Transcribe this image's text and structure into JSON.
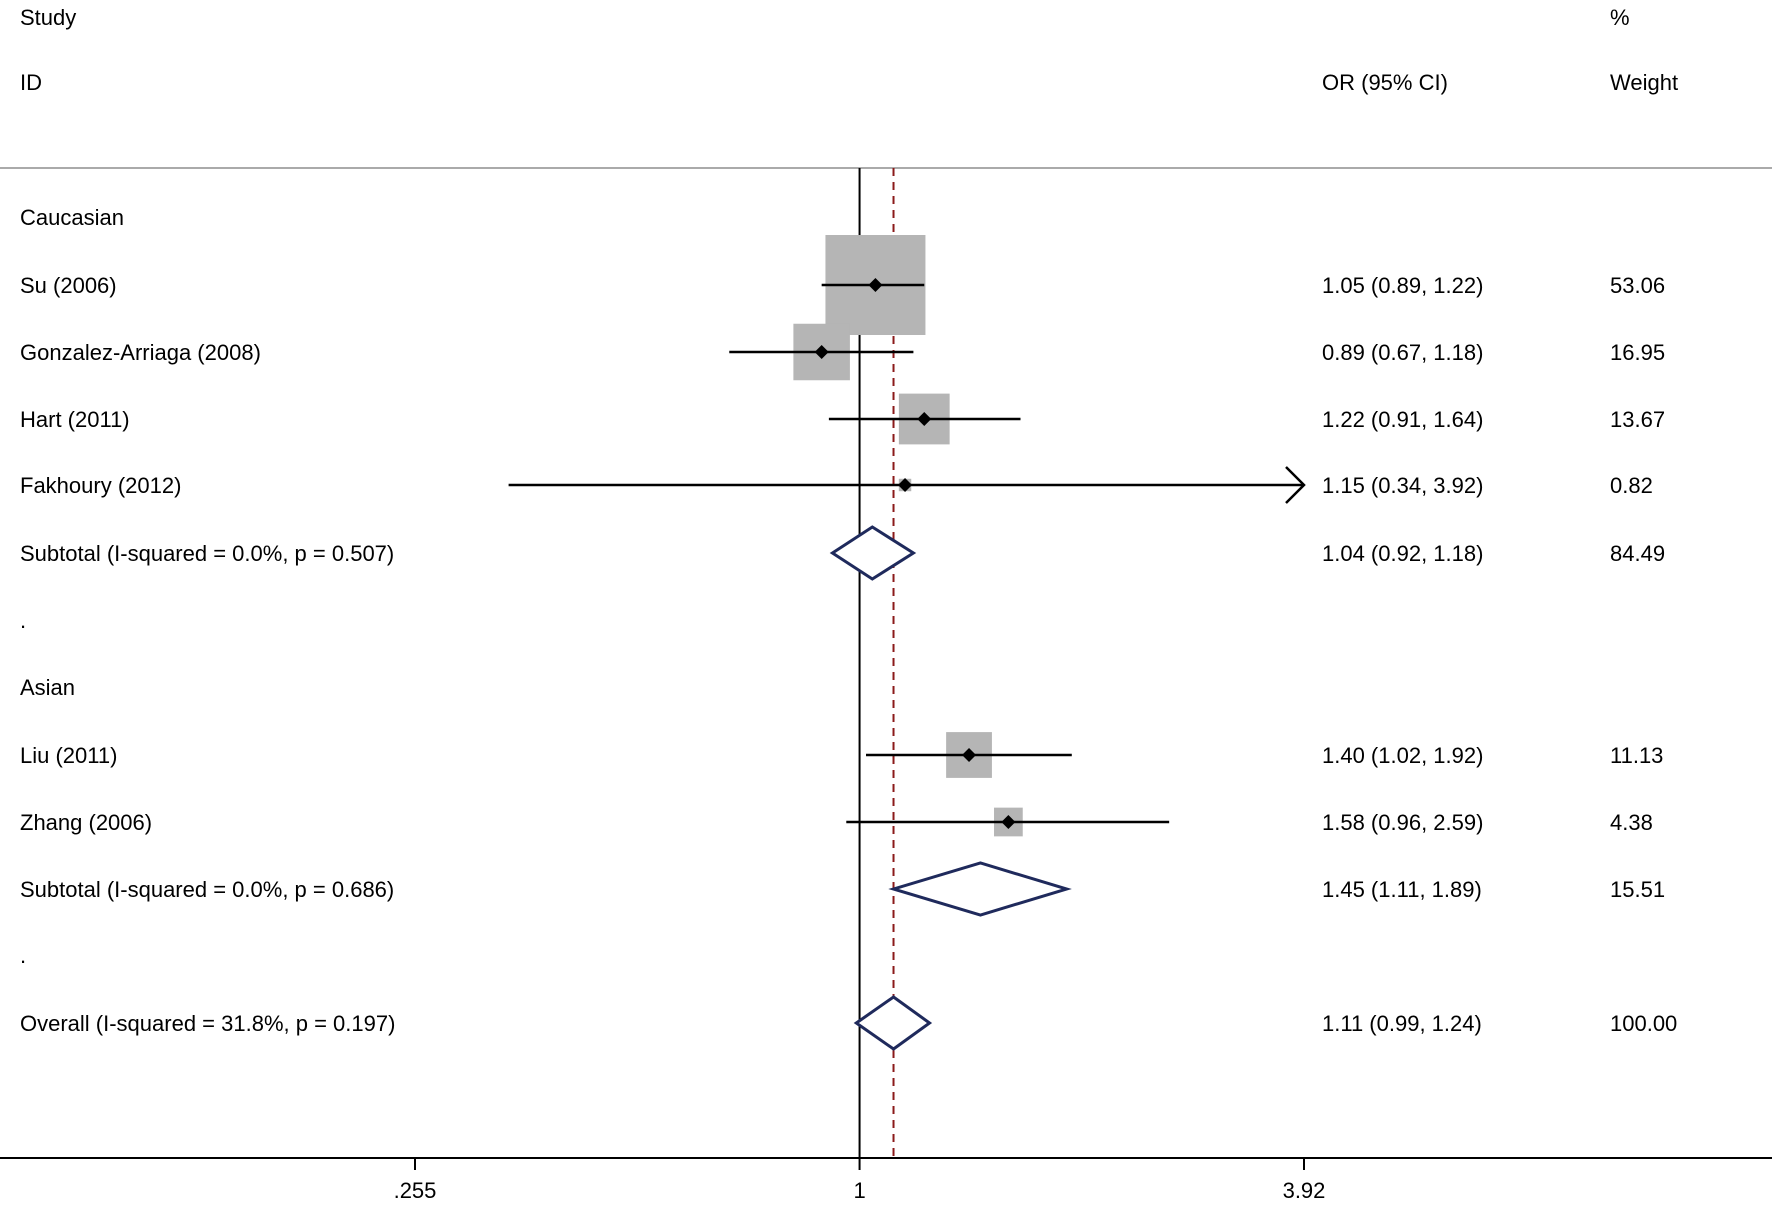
{
  "chart_data": {
    "type": "forest",
    "x_scale": "log",
    "xlim": [
      0.255,
      3.92
    ],
    "x_ticks": [
      ".255",
      "1",
      "3.92"
    ],
    "null_line": 1,
    "pooled_reference": 1.11,
    "header": {
      "study_line1": "Study",
      "study_line2": "ID",
      "or_header": "OR (95% CI)",
      "weight_line1": "%",
      "weight_line2": "Weight"
    },
    "rows": [
      {
        "kind": "group",
        "label": "Caucasian"
      },
      {
        "kind": "study",
        "label": "Su (2006)",
        "or": 1.05,
        "lo": 0.89,
        "hi": 1.22,
        "weight": 53.06,
        "or_text": "1.05 (0.89, 1.22)",
        "weight_text": "53.06"
      },
      {
        "kind": "study",
        "label": "Gonzalez-Arriaga  (2008)",
        "or": 0.89,
        "lo": 0.67,
        "hi": 1.18,
        "weight": 16.95,
        "or_text": "0.89 (0.67, 1.18)",
        "weight_text": "16.95"
      },
      {
        "kind": "study",
        "label": "Hart (2011)",
        "or": 1.22,
        "lo": 0.91,
        "hi": 1.64,
        "weight": 13.67,
        "or_text": "1.22 (0.91, 1.64)",
        "weight_text": "13.67"
      },
      {
        "kind": "study",
        "label": "Fakhoury (2012)",
        "or": 1.15,
        "lo": 0.34,
        "hi": 3.92,
        "weight": 0.82,
        "or_text": "1.15 (0.34, 3.92)",
        "weight_text": "0.82"
      },
      {
        "kind": "subtotal",
        "label": "Subtotal  (I-squared = 0.0%, p = 0.507)",
        "or": 1.04,
        "lo": 0.92,
        "hi": 1.18,
        "weight": 84.49,
        "or_text": "1.04 (0.92, 1.18)",
        "weight_text": "84.49"
      },
      {
        "kind": "spacer",
        "label": "."
      },
      {
        "kind": "group",
        "label": "Asian"
      },
      {
        "kind": "study",
        "label": "Liu (2011)",
        "or": 1.4,
        "lo": 1.02,
        "hi": 1.92,
        "weight": 11.13,
        "or_text": "1.40 (1.02, 1.92)",
        "weight_text": "11.13"
      },
      {
        "kind": "study",
        "label": "Zhang (2006)",
        "or": 1.58,
        "lo": 0.96,
        "hi": 2.59,
        "weight": 4.38,
        "or_text": "1.58 (0.96, 2.59)",
        "weight_text": "4.38"
      },
      {
        "kind": "subtotal",
        "label": "Subtotal  (I-squared = 0.0%, p = 0.686)",
        "or": 1.45,
        "lo": 1.11,
        "hi": 1.89,
        "weight": 15.51,
        "or_text": "1.45 (1.11, 1.89)",
        "weight_text": "15.51"
      },
      {
        "kind": "spacer",
        "label": "."
      },
      {
        "kind": "overall",
        "label": "Overall  (I-squared = 31.8%, p = 0.197)",
        "or": 1.11,
        "lo": 0.99,
        "hi": 1.24,
        "weight": 100.0,
        "or_text": "1.11 (0.99, 1.24)",
        "weight_text": "100.00"
      }
    ],
    "colors": {
      "box": "#b5b5b5",
      "diamond": "#1f2a5c",
      "reference_line": "#8b1a1a",
      "line": "#000000",
      "divider": "#aaaaaa"
    }
  }
}
